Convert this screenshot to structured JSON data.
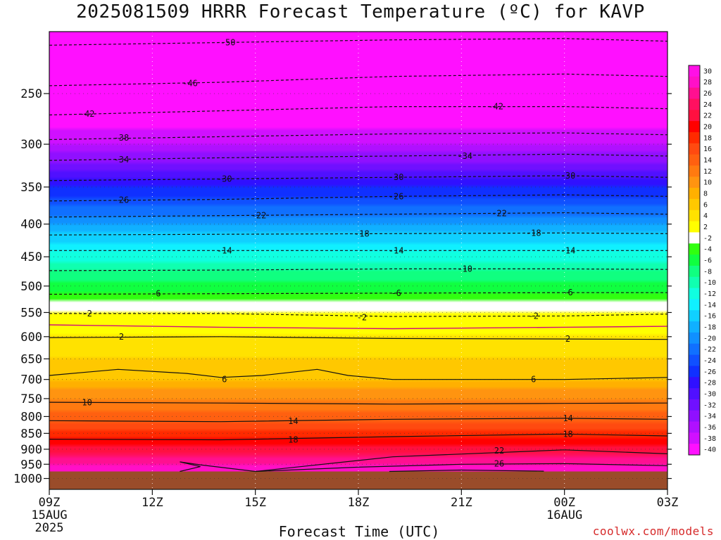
{
  "title": "2025081509 HRRR Forecast Temperature (ºC) for KAVP",
  "credit": "coolwx.com/models",
  "chart_data": {
    "type": "heatmap",
    "title": "2025081509 HRRR Forecast Temperature (ºC) for KAVP",
    "xlabel": "Forecast Time (UTC)",
    "ylabel": "",
    "x_ticks": [
      {
        "label": "09Z",
        "hour": 0,
        "sub": [
          "15AUG",
          "2025"
        ]
      },
      {
        "label": "12Z",
        "hour": 3,
        "sub": []
      },
      {
        "label": "15Z",
        "hour": 6,
        "sub": []
      },
      {
        "label": "18Z",
        "hour": 9,
        "sub": []
      },
      {
        "label": "21Z",
        "hour": 12,
        "sub": []
      },
      {
        "label": "00Z",
        "hour": 15,
        "sub": [
          "16AUG"
        ]
      },
      {
        "label": "03Z",
        "hour": 18,
        "sub": []
      }
    ],
    "xlim_hours": [
      0,
      18
    ],
    "y_ticks": [
      250,
      300,
      350,
      400,
      450,
      500,
      550,
      600,
      650,
      700,
      750,
      800,
      850,
      900,
      950,
      1000
    ],
    "ylim_hpa": [
      200,
      1040
    ],
    "y_scale": "log-pressure",
    "grid": true,
    "colorbar": {
      "labels": [
        30,
        28,
        26,
        24,
        22,
        20,
        18,
        16,
        14,
        12,
        10,
        8,
        6,
        4,
        2,
        -2,
        -4,
        -6,
        -8,
        -10,
        -12,
        -14,
        -16,
        -18,
        -20,
        -22,
        -24,
        -26,
        -28,
        -30,
        -32,
        -34,
        -36,
        -38,
        -40
      ],
      "colors": [
        "#ff10e6",
        "#ff10c8",
        "#ff1090",
        "#ff1060",
        "#ff1040",
        "#ff0000",
        "#ff2a00",
        "#ff4a10",
        "#ff6010",
        "#ff7a10",
        "#ff9410",
        "#ffb000",
        "#ffc800",
        "#ffe200",
        "#ffff00",
        "#ffffff",
        "#30ff10",
        "#10ff40",
        "#10ff80",
        "#10ffb0",
        "#10ffe0",
        "#10f0ff",
        "#10d0ff",
        "#10b0ff",
        "#1090ff",
        "#1070ff",
        "#1050ff",
        "#1030ff",
        "#3010ff",
        "#5010ff",
        "#7010ff",
        "#9010ff",
        "#b010ff",
        "#d010ff",
        "#ff10ff"
      ]
    },
    "temperature_profile": [
      {
        "p": 200,
        "t": -52
      },
      {
        "p": 250,
        "t": -44
      },
      {
        "p": 300,
        "t": -38
      },
      {
        "p": 350,
        "t": -28
      },
      {
        "p": 400,
        "t": -20
      },
      {
        "p": 450,
        "t": -13
      },
      {
        "p": 500,
        "t": -7
      },
      {
        "p": 550,
        "t": -2
      },
      {
        "p": 600,
        "t": 2
      },
      {
        "p": 650,
        "t": 4
      },
      {
        "p": 700,
        "t": 6
      },
      {
        "p": 750,
        "t": 10
      },
      {
        "p": 800,
        "t": 13
      },
      {
        "p": 850,
        "t": 17
      },
      {
        "p": 900,
        "t": 21
      },
      {
        "p": 950,
        "t": 26
      },
      {
        "p": 1000,
        "t": 28
      }
    ],
    "ground_pressure": 975,
    "contours": [
      {
        "level": -50,
        "style": "dashed",
        "color": "#111",
        "points": [
          [
            0,
            210
          ],
          [
            5,
            208
          ],
          [
            10,
            206
          ],
          [
            15,
            205
          ],
          [
            18,
            207
          ]
        ],
        "labels": [
          {
            "x": 5.2,
            "p": 208
          }
        ]
      },
      {
        "level": -46,
        "style": "dashed",
        "color": "#111",
        "points": [
          [
            0,
            243
          ],
          [
            5,
            240
          ],
          [
            10,
            235
          ],
          [
            15,
            233
          ],
          [
            18,
            235
          ]
        ],
        "labels": [
          {
            "x": 4.1,
            "p": 241
          }
        ]
      },
      {
        "level": -42,
        "style": "dashed",
        "color": "#111",
        "points": [
          [
            0,
            270
          ],
          [
            5,
            266
          ],
          [
            10,
            262
          ],
          [
            15,
            262
          ],
          [
            18,
            264
          ]
        ],
        "labels": [
          {
            "x": 1.1,
            "p": 269
          },
          {
            "x": 13.0,
            "p": 262
          }
        ]
      },
      {
        "level": -38,
        "style": "dashed",
        "color": "#111",
        "points": [
          [
            0,
            295
          ],
          [
            5,
            292
          ],
          [
            10,
            289
          ],
          [
            15,
            288
          ],
          [
            18,
            290
          ]
        ],
        "labels": [
          {
            "x": 2.1,
            "p": 293
          }
        ]
      },
      {
        "level": -34,
        "style": "dashed",
        "color": "#111",
        "points": [
          [
            0,
            318
          ],
          [
            5,
            315
          ],
          [
            10,
            313
          ],
          [
            15,
            311
          ],
          [
            18,
            313
          ]
        ],
        "labels": [
          {
            "x": 2.1,
            "p": 317
          },
          {
            "x": 12.1,
            "p": 313
          }
        ]
      },
      {
        "level": -30,
        "style": "dashed",
        "color": "#111",
        "points": [
          [
            0,
            342
          ],
          [
            5,
            340
          ],
          [
            10,
            338
          ],
          [
            15,
            336
          ],
          [
            18,
            338
          ]
        ],
        "labels": [
          {
            "x": 5.1,
            "p": 340
          },
          {
            "x": 10.1,
            "p": 338
          },
          {
            "x": 15.1,
            "p": 336
          }
        ]
      },
      {
        "level": -26,
        "style": "dashed",
        "color": "#111",
        "points": [
          [
            0,
            368
          ],
          [
            5,
            366
          ],
          [
            10,
            362
          ],
          [
            15,
            360
          ],
          [
            18,
            362
          ]
        ],
        "labels": [
          {
            "x": 2.1,
            "p": 367
          },
          {
            "x": 10.1,
            "p": 362
          }
        ]
      },
      {
        "level": -22,
        "style": "dashed",
        "color": "#111",
        "points": [
          [
            0,
            390
          ],
          [
            5,
            388
          ],
          [
            10,
            386
          ],
          [
            15,
            384
          ],
          [
            18,
            386
          ]
        ],
        "labels": [
          {
            "x": 6.1,
            "p": 388
          },
          {
            "x": 13.1,
            "p": 385
          }
        ]
      },
      {
        "level": -18,
        "style": "dashed",
        "color": "#111",
        "points": [
          [
            0,
            416
          ],
          [
            5,
            415
          ],
          [
            10,
            414
          ],
          [
            15,
            413
          ],
          [
            18,
            414
          ]
        ],
        "labels": [
          {
            "x": 9.1,
            "p": 414
          },
          {
            "x": 14.1,
            "p": 413
          }
        ]
      },
      {
        "level": -14,
        "style": "dashed",
        "color": "#111",
        "points": [
          [
            0,
            440
          ],
          [
            5,
            440
          ],
          [
            10,
            440
          ],
          [
            15,
            440
          ],
          [
            18,
            440
          ]
        ],
        "labels": [
          {
            "x": 5.1,
            "p": 440
          },
          {
            "x": 10.1,
            "p": 440
          },
          {
            "x": 15.1,
            "p": 440
          }
        ]
      },
      {
        "level": -10,
        "style": "dashed",
        "color": "#111",
        "points": [
          [
            0,
            473
          ],
          [
            5,
            472
          ],
          [
            10,
            470
          ],
          [
            15,
            470
          ],
          [
            18,
            471
          ]
        ],
        "labels": [
          {
            "x": 12.1,
            "p": 470
          }
        ]
      },
      {
        "level": -6,
        "style": "dashed",
        "color": "#111",
        "points": [
          [
            0,
            515
          ],
          [
            5,
            514
          ],
          [
            10,
            513
          ],
          [
            15,
            512
          ],
          [
            18,
            512
          ]
        ],
        "labels": [
          {
            "x": 3.1,
            "p": 514
          },
          {
            "x": 10.1,
            "p": 513
          },
          {
            "x": 15.1,
            "p": 512
          }
        ]
      },
      {
        "level": -2,
        "style": "dashed",
        "color": "#111",
        "points": [
          [
            0,
            552
          ],
          [
            5,
            552
          ],
          [
            10,
            558
          ],
          [
            15,
            557
          ],
          [
            18,
            553
          ]
        ],
        "labels": [
          {
            "x": 1.1,
            "p": 552
          },
          {
            "x": 9.1,
            "p": 560
          },
          {
            "x": 14.1,
            "p": 557
          }
        ]
      },
      {
        "level": 0,
        "style": "solid",
        "color": "#d0107a",
        "points": [
          [
            0,
            575
          ],
          [
            5,
            580
          ],
          [
            10,
            583
          ],
          [
            15,
            580
          ],
          [
            18,
            578
          ]
        ],
        "labels": []
      },
      {
        "level": 2,
        "style": "solid",
        "color": "#111",
        "points": [
          [
            0,
            602
          ],
          [
            5,
            600
          ],
          [
            10,
            604
          ],
          [
            15,
            605
          ],
          [
            18,
            606
          ]
        ],
        "labels": [
          {
            "x": 2.1,
            "p": 600
          },
          {
            "x": 15.1,
            "p": 605
          }
        ]
      },
      {
        "level": 6,
        "style": "solid",
        "color": "#111",
        "points": [
          [
            0,
            690
          ],
          [
            2,
            675
          ],
          [
            4,
            685
          ],
          [
            5,
            695
          ],
          [
            6.2,
            690
          ],
          [
            7.8,
            675
          ],
          [
            8.7,
            690
          ],
          [
            10,
            700
          ],
          [
            15,
            700
          ],
          [
            18,
            695
          ]
        ],
        "labels": [
          {
            "x": 5.1,
            "p": 700
          },
          {
            "x": 14.1,
            "p": 700
          }
        ]
      },
      {
        "level": 10,
        "style": "solid",
        "color": "#111",
        "points": [
          [
            0,
            760
          ],
          [
            5,
            762
          ],
          [
            10,
            765
          ],
          [
            15,
            763
          ],
          [
            18,
            762
          ]
        ],
        "labels": [
          {
            "x": 1.1,
            "p": 761
          }
        ]
      },
      {
        "level": 14,
        "style": "solid",
        "color": "#111",
        "points": [
          [
            0,
            812
          ],
          [
            5,
            815
          ],
          [
            10,
            808
          ],
          [
            15,
            805
          ],
          [
            18,
            808
          ]
        ],
        "labels": [
          {
            "x": 7.1,
            "p": 813
          },
          {
            "x": 15.1,
            "p": 805
          }
        ]
      },
      {
        "level": 18,
        "style": "solid",
        "color": "#111",
        "points": [
          [
            0,
            868
          ],
          [
            5,
            870
          ],
          [
            10,
            860
          ],
          [
            15,
            852
          ],
          [
            18,
            858
          ]
        ],
        "labels": [
          {
            "x": 7.1,
            "p": 870
          },
          {
            "x": 15.1,
            "p": 852
          }
        ]
      },
      {
        "level": 22,
        "style": "solid",
        "color": "#111",
        "points": [
          [
            6,
            975
          ],
          [
            10,
            925
          ],
          [
            15,
            902
          ],
          [
            18,
            915
          ]
        ],
        "labels": [
          {
            "x": 13.1,
            "p": 905
          }
        ]
      },
      {
        "level": 26,
        "style": "solid",
        "color": "#111",
        "points": [
          [
            3.8,
            975
          ],
          [
            4.4,
            958
          ],
          [
            3.8,
            942
          ],
          [
            4.4,
            952
          ],
          [
            6,
            975
          ]
        ],
        "labels": []
      },
      {
        "level": 26,
        "style": "solid",
        "color": "#111",
        "points": [
          [
            6,
            975
          ],
          [
            9,
            960
          ],
          [
            12,
            950
          ],
          [
            15,
            948
          ],
          [
            18,
            955
          ]
        ],
        "labels": [
          {
            "x": 13.1,
            "p": 948
          }
        ]
      },
      {
        "level": 30,
        "style": "solid",
        "color": "#111",
        "points": [
          [
            9.9,
            975
          ],
          [
            12,
            970
          ],
          [
            14.4,
            974
          ]
        ],
        "labels": []
      }
    ]
  }
}
